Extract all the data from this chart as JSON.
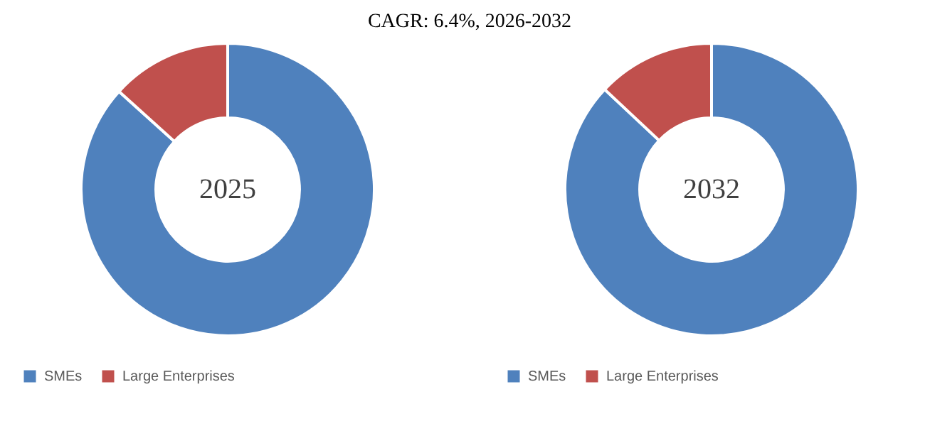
{
  "chart_data": [
    {
      "type": "donut",
      "title": "2025",
      "categories": [
        "SMEs",
        "Large Enterprises"
      ],
      "values": [
        86.7,
        13.3
      ],
      "colors": [
        "#4f81bd",
        "#c0504d"
      ],
      "legend": "bottom",
      "annotations": [
        "CAGR:   6.4%, 2026-2032"
      ]
    },
    {
      "type": "donut",
      "title": "2032",
      "categories": [
        "SMEs",
        "Large Enterprises"
      ],
      "values": [
        87.0,
        13.0
      ],
      "colors": [
        "#4f81bd",
        "#c0504d"
      ],
      "legend": "bottom"
    }
  ]
}
